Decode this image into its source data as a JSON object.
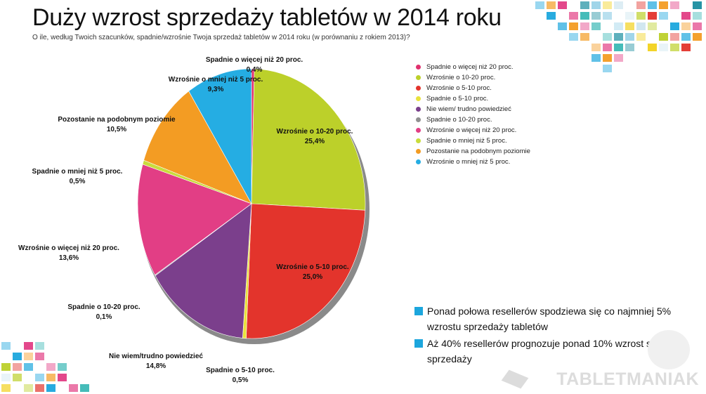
{
  "title": "Duży wzrost sprzedaży tabletów w 2014 roku",
  "subtitle": "O ile, według Twoich szacunków, spadnie/wzrośnie Twoja sprzedaż tabletów w 2014 roku (w porównaniu z rokiem 2013)?",
  "chart_data": {
    "type": "pie",
    "title": "Duży wzrost sprzedaży tabletów w 2014 roku",
    "slices": [
      {
        "label": "Spadnie o więcej niż 20 proc.",
        "value": 0.4,
        "value_label": "0,4%",
        "color": "#e0316e"
      },
      {
        "label": "Wzrośnie o 10-20 proc.",
        "value": 25.4,
        "value_label": "25,4%",
        "color": "#bcd02a"
      },
      {
        "label": "Wzrośnie o 5-10 proc.",
        "value": 25.0,
        "value_label": "25,0%",
        "color": "#e3342c"
      },
      {
        "label": "Spadnie o 5-10 proc.",
        "value": 0.5,
        "value_label": "0,5%",
        "color": "#e9e23c"
      },
      {
        "label": "Nie wiem/ trudno powiedzieć",
        "value": 14.8,
        "value_label": "14,8%",
        "color": "#7b3f8c"
      },
      {
        "label": "Spadnie o 10-20 proc.",
        "value": 0.1,
        "value_label": "0,1%",
        "color": "#909090"
      },
      {
        "label": "Wzrośnie o więcej niż 20 proc.",
        "value": 13.6,
        "value_label": "13,6%",
        "color": "#e23e85"
      },
      {
        "label": "Spadnie o mniej niż 5 proc.",
        "value": 0.5,
        "value_label": "0,5%",
        "color": "#c9dc3c"
      },
      {
        "label": "Pozostanie na podobnym poziomie",
        "value": 10.5,
        "value_label": "10,5%",
        "color": "#f39c23"
      },
      {
        "label": "Wzrośnie o mniej niż 5 proc.",
        "value": 9.3,
        "value_label": "9,3%",
        "color": "#25ade3"
      }
    ],
    "slice_label_text": [
      "Spadnie o więcej niż 20 proc.",
      "Wzrośnie o 10-20 proc.",
      "Wzrośnie o 5-10 proc.",
      "Spadnie o 5-10 proc.",
      "Nie wiem/trudno powiedzieć",
      "Spadnie o 10-20 proc.",
      "Wzrośnie o więcej niż 20 proc.",
      "Spadnie o mniej niż 5 proc.",
      "Pozostanie na podobnym poziomie",
      "Wzrośnie o mniej niż 5 proc."
    ],
    "legend_position": "right"
  },
  "notes": [
    "Ponad połowa resellerów spodziewa się co najmniej 5% wzrostu sprzedaży tabletów",
    "Aż 40% resellerów prognozuje ponad 10% wzrost swojej sprzedaży"
  ],
  "logo_text": "TABLETMANIAK",
  "colors": {
    "accent": "#1ca6dd"
  }
}
